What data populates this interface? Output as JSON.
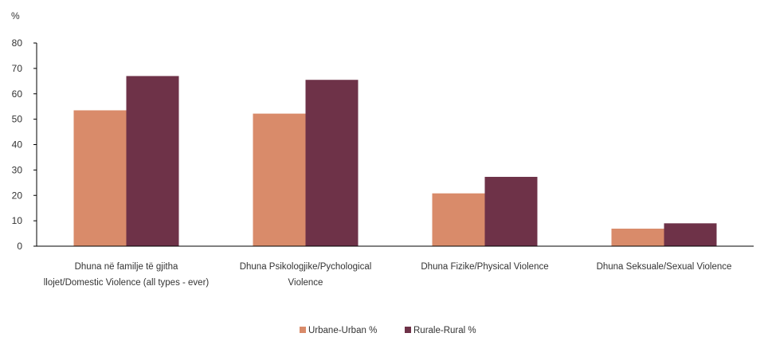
{
  "chart_data": {
    "type": "bar",
    "ylabel": "%",
    "ylim": [
      0,
      80
    ],
    "yticks": [
      0,
      10,
      20,
      30,
      40,
      50,
      60,
      70,
      80
    ],
    "grid": false,
    "legend_position": "bottom",
    "categories": [
      [
        "Dhuna në familje të gjitha",
        "llojet/Domestic  Violence (all types - ever)"
      ],
      [
        "Dhuna Psikologjike/Pychological",
        "Violence"
      ],
      [
        "Dhuna Fizike/Physical Violence"
      ],
      [
        "Dhuna Seksuale/Sexual Violence"
      ]
    ],
    "series": [
      {
        "name": "Urbane-Urban %",
        "color": "#d98b6a",
        "values": [
          53.5,
          52.2,
          20.8,
          6.9
        ]
      },
      {
        "name": "Rurale-Rural %",
        "color": "#6e3248",
        "values": [
          67,
          65.5,
          27.3,
          9.0
        ]
      }
    ]
  }
}
